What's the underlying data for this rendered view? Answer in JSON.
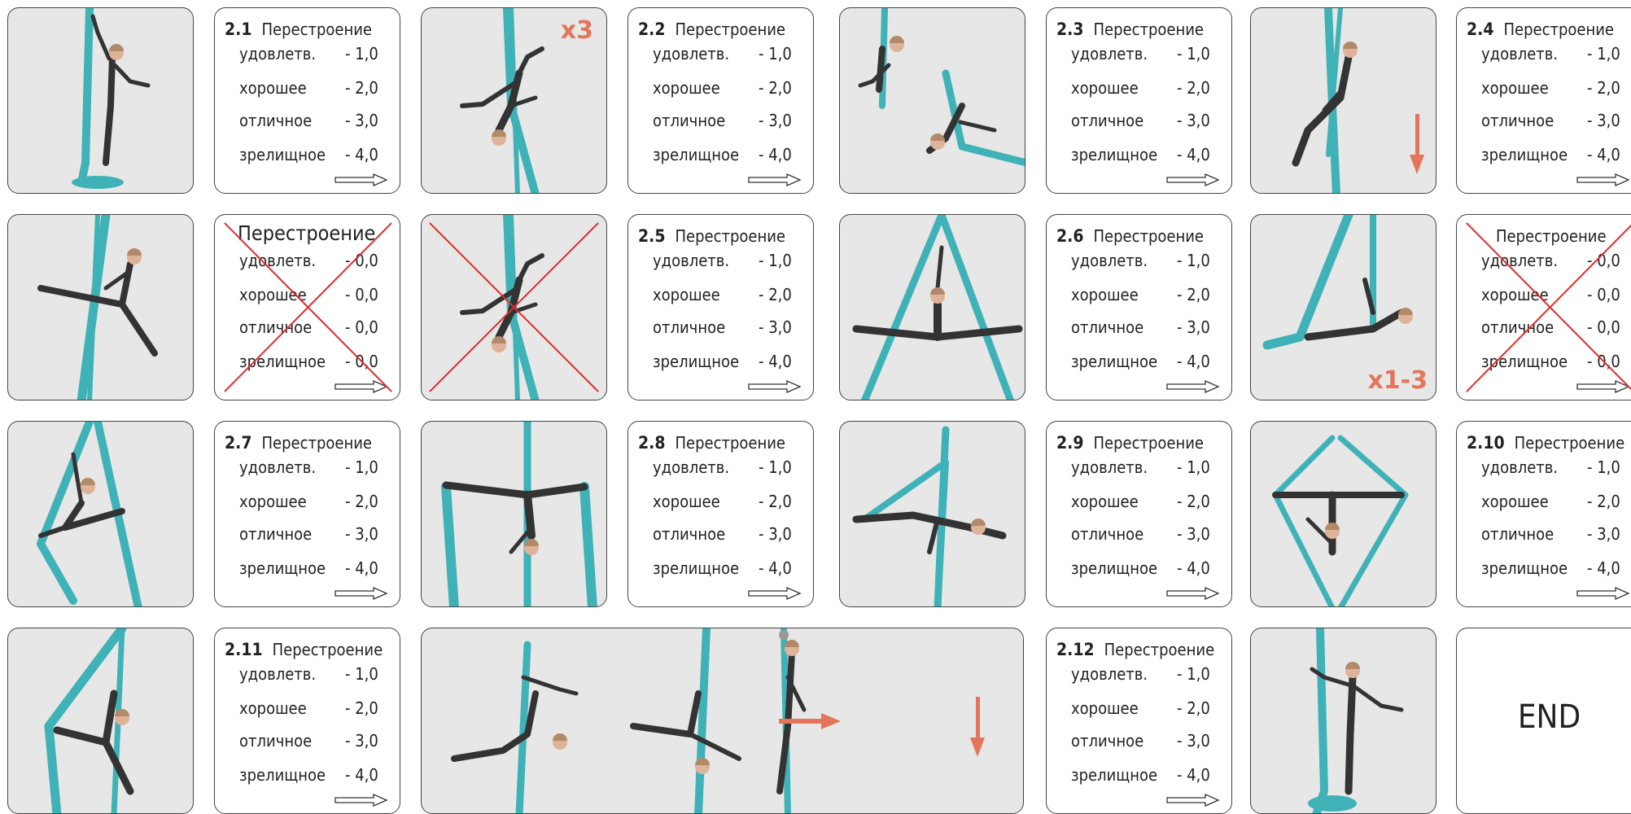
{
  "cards": {
    "c21": {
      "num": "2.1",
      "title": "Перестроение",
      "rows": [
        {
          "l": "удовлетв.",
          "v": "- 1,0"
        },
        {
          "l": "хорошее",
          "v": "- 2,0"
        },
        {
          "l": "отличное",
          "v": "- 3,0"
        },
        {
          "l": "зрелищное",
          "v": "- 4,0"
        }
      ]
    },
    "c22": {
      "num": "2.2",
      "title": "Перестроение",
      "rows": [
        {
          "l": "удовлетв.",
          "v": "- 1,0"
        },
        {
          "l": "хорошее",
          "v": "- 2,0"
        },
        {
          "l": "отличное",
          "v": "- 3,0"
        },
        {
          "l": "зрелищное",
          "v": "- 4,0"
        }
      ]
    },
    "c23": {
      "num": "2.3",
      "title": "Перестроение",
      "rows": [
        {
          "l": "удовлетв.",
          "v": "- 1,0"
        },
        {
          "l": "хорошее",
          "v": "- 2,0"
        },
        {
          "l": "отличное",
          "v": "- 3,0"
        },
        {
          "l": "зрелищное",
          "v": "- 4,0"
        }
      ]
    },
    "c24": {
      "num": "2.4",
      "title": "Перестроение",
      "rows": [
        {
          "l": "удовлетв.",
          "v": "- 1,0"
        },
        {
          "l": "хорошее",
          "v": "- 2,0"
        },
        {
          "l": "отличное",
          "v": "- 3,0"
        },
        {
          "l": "зрелищное",
          "v": "- 4,0"
        }
      ]
    },
    "x1": {
      "num": "",
      "title": "Перестроение",
      "rows": [
        {
          "l": "удовлетв.",
          "v": "- 0,0"
        },
        {
          "l": "хорошее",
          "v": "- 0,0"
        },
        {
          "l": "отличное",
          "v": "- 0,0"
        },
        {
          "l": "зрелищное",
          "v": "- 0,0"
        }
      ]
    },
    "c25": {
      "num": "2.5",
      "title": "Перестроение",
      "rows": [
        {
          "l": "удовлетв.",
          "v": "- 1,0"
        },
        {
          "l": "хорошее",
          "v": "- 2,0"
        },
        {
          "l": "отличное",
          "v": "- 3,0"
        },
        {
          "l": "зрелищное",
          "v": "- 4,0"
        }
      ]
    },
    "c26": {
      "num": "2.6",
      "title": "Перестроение",
      "rows": [
        {
          "l": "удовлетв.",
          "v": "- 1,0"
        },
        {
          "l": "хорошее",
          "v": "- 2,0"
        },
        {
          "l": "отличное",
          "v": "- 3,0"
        },
        {
          "l": "зрелищное",
          "v": "- 4,0"
        }
      ]
    },
    "x2": {
      "num": "",
      "title": "Перестроение",
      "rows": [
        {
          "l": "удовлетв.",
          "v": "- 0,0"
        },
        {
          "l": "хорошее",
          "v": "- 0,0"
        },
        {
          "l": "отличное",
          "v": "- 0,0"
        },
        {
          "l": "зрелищное",
          "v": "- 0,0"
        }
      ]
    },
    "c27": {
      "num": "2.7",
      "title": "Перестроение",
      "rows": [
        {
          "l": "удовлетв.",
          "v": "- 1,0"
        },
        {
          "l": "хорошее",
          "v": "- 2,0"
        },
        {
          "l": "отличное",
          "v": "- 3,0"
        },
        {
          "l": "зрелищное",
          "v": "- 4,0"
        }
      ]
    },
    "c28": {
      "num": "2.8",
      "title": "Перестроение",
      "rows": [
        {
          "l": "удовлетв.",
          "v": "- 1,0"
        },
        {
          "l": "хорошее",
          "v": "- 2,0"
        },
        {
          "l": "отличное",
          "v": "- 3,0"
        },
        {
          "l": "зрелищное",
          "v": "- 4,0"
        }
      ]
    },
    "c29": {
      "num": "2.9",
      "title": "Перестроение",
      "rows": [
        {
          "l": "удовлетв.",
          "v": "- 1,0"
        },
        {
          "l": "хорошее",
          "v": "- 2,0"
        },
        {
          "l": "отличное",
          "v": "- 3,0"
        },
        {
          "l": "зрелищное",
          "v": "- 4,0"
        }
      ]
    },
    "c210": {
      "num": "2.10",
      "title": "Перестроение",
      "rows": [
        {
          "l": "удовлетв.",
          "v": "- 1,0"
        },
        {
          "l": "хорошее",
          "v": "- 2,0"
        },
        {
          "l": "отличное",
          "v": "- 3,0"
        },
        {
          "l": "зрелищное",
          "v": "- 4,0"
        }
      ]
    },
    "c211": {
      "num": "2.11",
      "title": "Перестроение",
      "rows": [
        {
          "l": "удовлетв.",
          "v": "- 1,0"
        },
        {
          "l": "хорошее",
          "v": "- 2,0"
        },
        {
          "l": "отличное",
          "v": "- 3,0"
        },
        {
          "l": "зрелищное",
          "v": "- 4,0"
        }
      ]
    },
    "c212": {
      "num": "2.12",
      "title": "Перестроение",
      "rows": [
        {
          "l": "удовлетв.",
          "v": "- 1,0"
        },
        {
          "l": "хорошее",
          "v": "- 2,0"
        },
        {
          "l": "отличное",
          "v": "- 3,0"
        },
        {
          "l": "зрелищное",
          "v": "- 4,0"
        }
      ]
    }
  },
  "badges": {
    "x3": "x3",
    "x13": "x1-3"
  },
  "end_label": "END",
  "colors": {
    "fabric": "#3fb2b8",
    "fabric_dark": "#2a8f95",
    "bodysuit": "#333333",
    "skin": "#ddb49a",
    "accent": "#e4755a",
    "cross": "#e02a2a",
    "photo_bg": "#e6e7e6"
  },
  "icons": {
    "next": "outline-right-arrow-icon",
    "accent_arrow": "orange-arrow-icon",
    "cross": "red-x-cross-icon"
  }
}
